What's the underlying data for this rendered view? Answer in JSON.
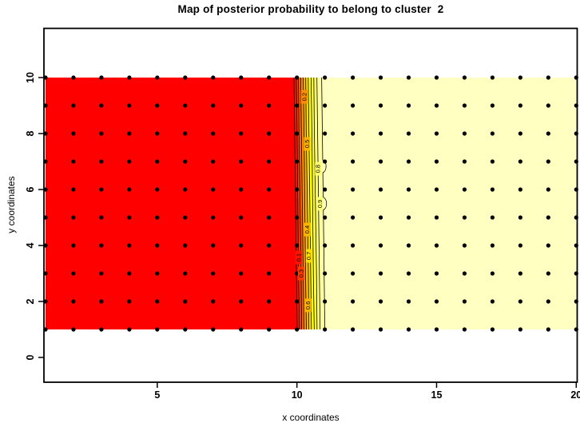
{
  "figure": {
    "title": "Map of posterior probability to belong to cluster  2"
  },
  "chart_data": {
    "type": "heatmap",
    "variant": "filled_contour_map_with_points",
    "title": "Map of posterior probability to belong to cluster  2",
    "xlabel": "x coordinates",
    "ylabel": "y coordinates",
    "x_ticks": [
      5,
      10,
      15,
      20
    ],
    "y_ticks": [
      0,
      2,
      4,
      6,
      8,
      10
    ],
    "x_range_data": [
      1,
      20
    ],
    "y_range_data": [
      1,
      10
    ],
    "axes_range_shown": {
      "x": [
        0.9,
        20.05
      ],
      "y": [
        -1.25,
        11.8
      ]
    },
    "grid_points": {
      "marker": "filled-black-dot",
      "x_values": [
        1,
        2,
        3,
        4,
        5,
        6,
        7,
        8,
        9,
        10,
        11,
        12,
        13,
        14,
        15,
        16,
        17,
        18,
        19,
        20
      ],
      "y_values": [
        1,
        2,
        3,
        4,
        5,
        6,
        7,
        8,
        9,
        10
      ]
    },
    "field": {
      "description": "posterior probability to belong to cluster 2",
      "left_region": {
        "x_from": 1,
        "x_to": 10,
        "probability": 0,
        "color": "#FF0000"
      },
      "right_region": {
        "x_from": 11,
        "x_to": 20,
        "probability": 1,
        "color": "#FFFFC2"
      },
      "transition": {
        "x_from": 10,
        "x_to": 11
      }
    },
    "contour_levels": [
      0.1,
      0.2,
      0.3,
      0.4,
      0.5,
      0.6,
      0.7,
      0.8,
      0.9
    ],
    "contour_lines_x": [
      10.01,
      10.09,
      10.17,
      10.25,
      10.34,
      10.43,
      10.52,
      10.62,
      10.72,
      10.83,
      11.0
    ],
    "band_colors": [
      "#FF1400",
      "#FF3C00",
      "#FF6400",
      "#FF8C00",
      "#FFB400",
      "#FFDC00",
      "#FFFF00",
      "#FFFF30",
      "#FFFF70",
      "#FFFFA0"
    ],
    "contour_labels": [
      {
        "value": "0.1",
        "x": 10.06,
        "y": 3.57
      },
      {
        "value": "0.2",
        "x": 10.26,
        "y": 9.31
      },
      {
        "value": "0.3",
        "x": 10.15,
        "y": 3.0
      },
      {
        "value": "0.4",
        "x": 10.37,
        "y": 4.57
      },
      {
        "value": "0.5",
        "x": 10.37,
        "y": 7.63
      },
      {
        "value": "0.6",
        "x": 10.4,
        "y": 1.86
      },
      {
        "value": "0.7",
        "x": 10.43,
        "y": 3.63
      },
      {
        "value": "0.8",
        "x": 10.76,
        "y": 6.74
      },
      {
        "value": "0.9",
        "x": 10.82,
        "y": 5.49
      }
    ],
    "contour_bumps": {
      "on_line_x": 11.0,
      "y_centers": [
        6.83,
        5.5
      ]
    },
    "colors": {
      "low": "#FF0000",
      "high": "#FFFFC2",
      "points": "#000000",
      "contour_line": "#000000",
      "axis": "#000000"
    }
  }
}
